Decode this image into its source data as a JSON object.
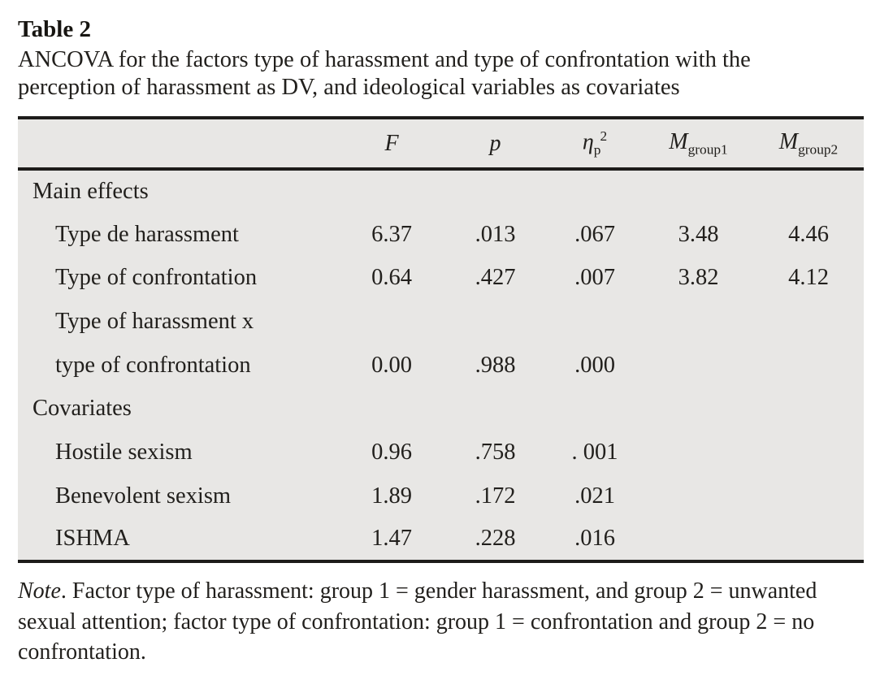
{
  "title": "Table 2",
  "caption": "ANCOVA for the factors type of harassment and type of confrontation with the perception of harassment as DV, and ideological variables as covariates",
  "colors": {
    "table_background": "#e8e7e5",
    "rule": "#1d1c1a",
    "text": "#22201d"
  },
  "table": {
    "columns": {
      "label": "",
      "f": "F",
      "p": "p",
      "eta_base": "η",
      "eta_sub": "p",
      "eta_sup": "2",
      "m1_base": "M",
      "m1_sub": "group1",
      "m2_base": "M",
      "m2_sub": "group2"
    },
    "rows": [
      {
        "label": "Main effects",
        "section": true,
        "f": "",
        "p": "",
        "eta": "",
        "m1": "",
        "m2": ""
      },
      {
        "label": "Type de harassment",
        "section": false,
        "f": "6.37",
        "p": ".013",
        "eta": ".067",
        "m1": "3.48",
        "m2": "4.46"
      },
      {
        "label": "Type of confrontation",
        "section": false,
        "f": "0.64",
        "p": ".427",
        "eta": ".007",
        "m1": "3.82",
        "m2": "4.12"
      },
      {
        "label": "Type of harassment x",
        "section": false,
        "f": "",
        "p": "",
        "eta": "",
        "m1": "",
        "m2": ""
      },
      {
        "label": "type of confrontation",
        "section": false,
        "f": "0.00",
        "p": ".988",
        "eta": ".000",
        "m1": "",
        "m2": ""
      },
      {
        "label": "Covariates",
        "section": true,
        "f": "",
        "p": "",
        "eta": "",
        "m1": "",
        "m2": ""
      },
      {
        "label": "Hostile sexism",
        "section": false,
        "f": "0.96",
        "p": ".758",
        "eta": ". 001",
        "m1": "",
        "m2": ""
      },
      {
        "label": "Benevolent sexism",
        "section": false,
        "f": "1.89",
        "p": ".172",
        "eta": ".021",
        "m1": "",
        "m2": ""
      },
      {
        "label": "ISHMA",
        "section": false,
        "f": "1.47",
        "p": ".228",
        "eta": ".016",
        "m1": "",
        "m2": ""
      }
    ]
  },
  "note": {
    "prefix": "Note",
    "body": ". Factor type of harassment: group 1 = gender harassment, and group 2 = unwanted sexual attention; factor type of confrontation: group 1 = confrontation and group 2 = no confrontation."
  }
}
